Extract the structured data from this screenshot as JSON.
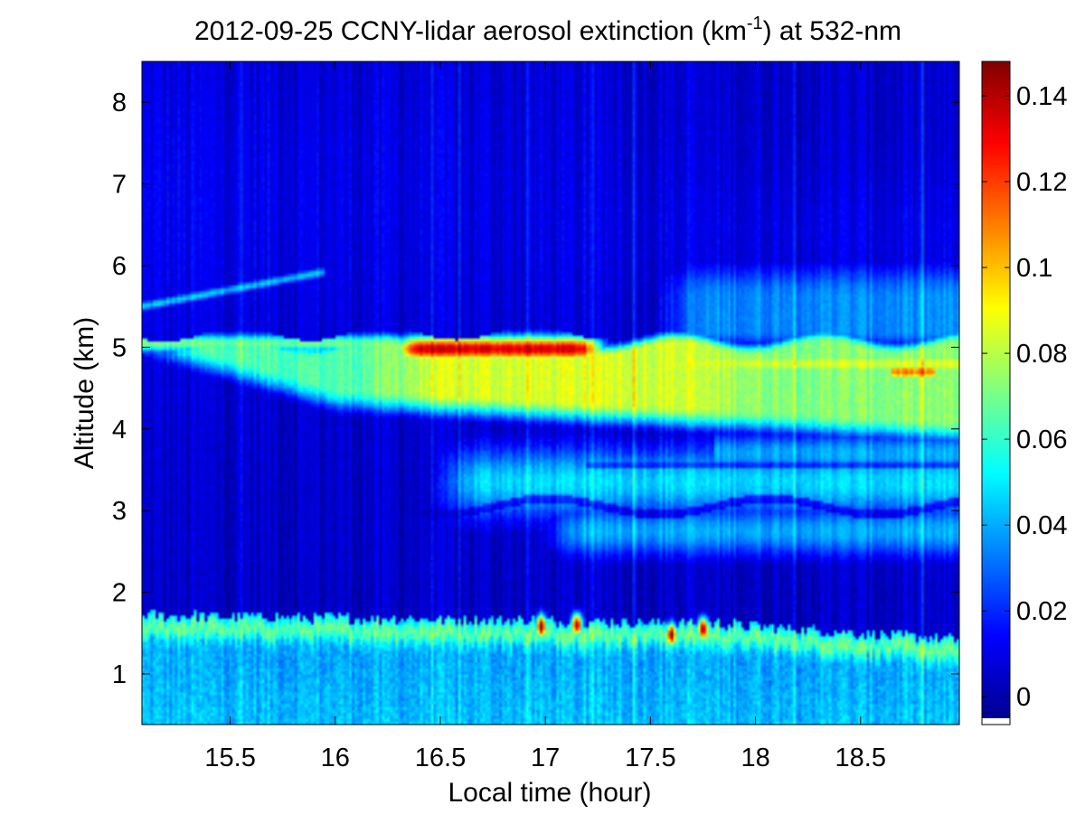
{
  "chart_data": {
    "type": "heatmap",
    "title": {
      "prefix": "2012-09-25 CCNY-lidar aerosol extinction (km",
      "superscript": "-1",
      "suffix": ") at 532-nm"
    },
    "xlabel": "Local time (hour)",
    "ylabel": "Altitude (km)",
    "xlim": [
      15.08,
      18.97
    ],
    "ylim": [
      0.38,
      8.5
    ],
    "xticks": [
      15.5,
      16,
      16.5,
      17,
      17.5,
      18,
      18.5
    ],
    "xtick_labels": [
      "15.5",
      "16",
      "16.5",
      "17",
      "17.5",
      "18",
      "18.5"
    ],
    "yticks": [
      1,
      2,
      3,
      4,
      5,
      6,
      7,
      8
    ],
    "ytick_labels": [
      "1",
      "2",
      "3",
      "4",
      "5",
      "6",
      "7",
      "8"
    ],
    "colorbar": {
      "colormap": "jet",
      "clim": [
        -0.005,
        0.148
      ],
      "ticks": [
        0,
        0.02,
        0.04,
        0.06,
        0.08,
        0.1,
        0.12,
        0.14
      ],
      "tick_labels": [
        "0",
        "0.02",
        "0.04",
        "0.06",
        "0.08",
        "0.1",
        "0.12",
        "0.14"
      ]
    },
    "features": [
      {
        "label": "boundary layer",
        "time_range": [
          15.08,
          18.97
        ],
        "altitude_top": [
          1.75,
          1.45
        ],
        "extinction": 0.055
      },
      {
        "label": "elevated smoke layer",
        "time_range": [
          15.08,
          18.97
        ],
        "altitude_top": [
          5.15,
          5.2
        ],
        "altitude_bottom": [
          4.95,
          3.85
        ],
        "extinction": 0.085
      },
      {
        "label": "smoke layer core",
        "time_range": [
          16.3,
          17.3
        ],
        "altitude": 4.95,
        "extinction": 0.13
      },
      {
        "label": "thin upper layer",
        "time_range": [
          15.08,
          15.9
        ],
        "altitude": [
          5.5,
          5.9
        ],
        "extinction": 0.045
      },
      {
        "label": "mid-level layers",
        "time_range": [
          16.4,
          18.97
        ],
        "altitude": [
          2.6,
          3.6
        ],
        "extinction": 0.045
      },
      {
        "label": "residual upper layer",
        "time_range": [
          17.4,
          18.97
        ],
        "altitude": [
          5.0,
          6.3
        ],
        "extinction": 0.035
      },
      {
        "label": "surface hotspots",
        "times": [
          16.98,
          17.15,
          17.6,
          17.75
        ],
        "altitude": 1.55,
        "extinction": 0.145
      }
    ]
  }
}
